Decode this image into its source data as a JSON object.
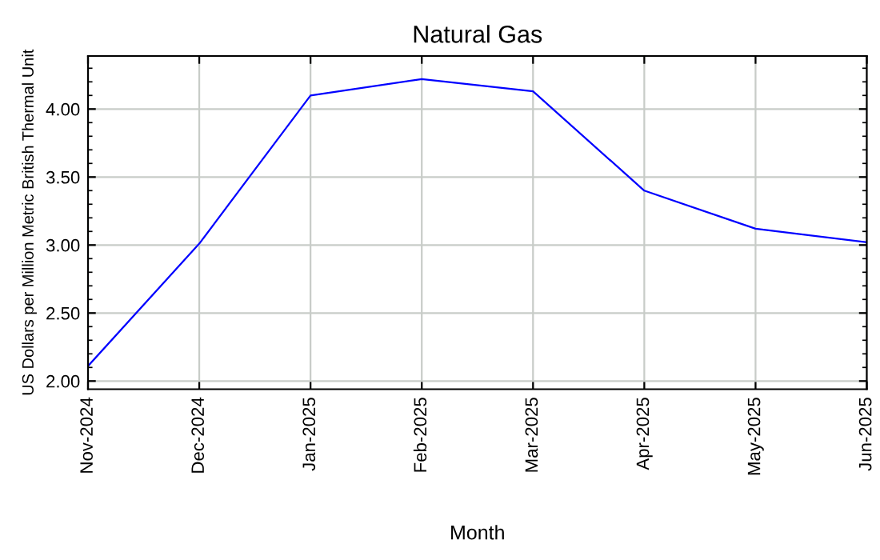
{
  "chart_data": {
    "type": "line",
    "title": "Natural Gas",
    "xlabel": "Month",
    "ylabel": "US Dollars per Million Metric British Thermal Unit",
    "categories": [
      "Nov-2024",
      "Dec-2024",
      "Jan-2025",
      "Feb-2025",
      "Mar-2025",
      "Apr-2025",
      "May-2025",
      "Jun-2025"
    ],
    "series": [
      {
        "color": "#0000ff",
        "values": [
          2.11,
          3.01,
          4.1,
          4.22,
          4.13,
          3.4,
          3.12,
          3.02
        ]
      }
    ],
    "ylim": [
      1.94,
      4.39
    ],
    "yticks": [
      {
        "value": 2,
        "label": "2.00"
      },
      {
        "value": 2.5,
        "label": "2.50"
      },
      {
        "value": 3,
        "label": "3.00"
      },
      {
        "value": 3.5,
        "label": "3.50"
      },
      {
        "value": 4,
        "label": "4.00"
      }
    ],
    "grid": true,
    "legend": false,
    "marker": "none",
    "line_style": "solid"
  }
}
